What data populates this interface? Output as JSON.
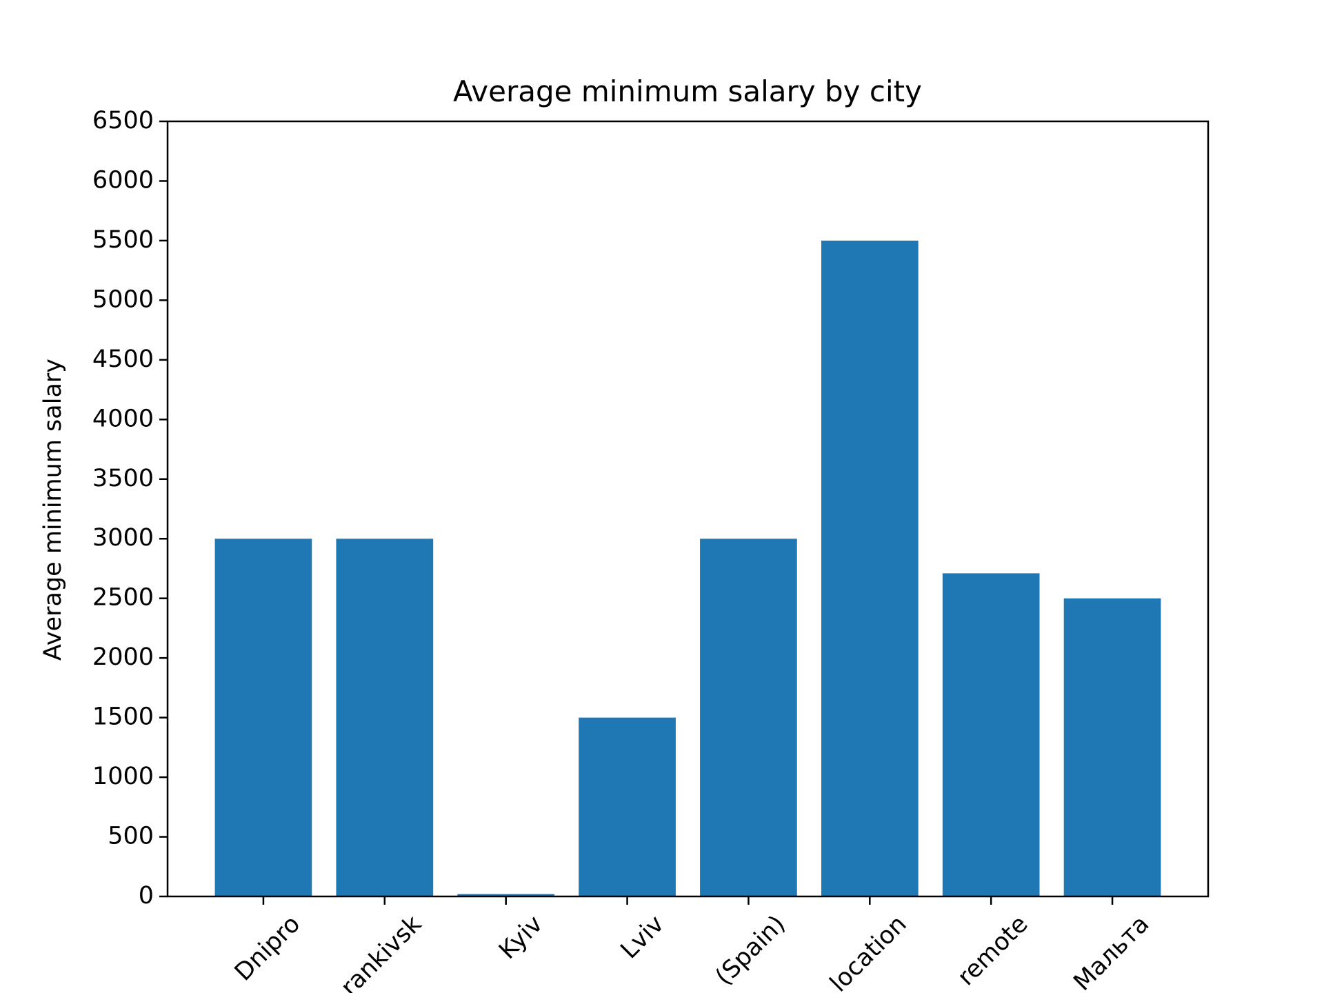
{
  "chart_data": {
    "type": "bar",
    "title": "Average minimum salary by city",
    "y_label": "Average minimum salary",
    "categories": [
      "Dnipro",
      "rankivsk",
      "Kyiv",
      "Lviv",
      "(Spain)",
      "location",
      "remote",
      "Мальта"
    ],
    "values": [
      3000,
      3000,
      20,
      1500,
      3000,
      5500,
      2710,
      2500
    ],
    "color": "#1f77b4",
    "ylim": [
      0,
      6500
    ],
    "yticks": [
      0,
      500,
      1000,
      1500,
      2000,
      2500,
      3000,
      3500,
      4000,
      4500,
      5000,
      5500,
      6000,
      6500
    ]
  }
}
